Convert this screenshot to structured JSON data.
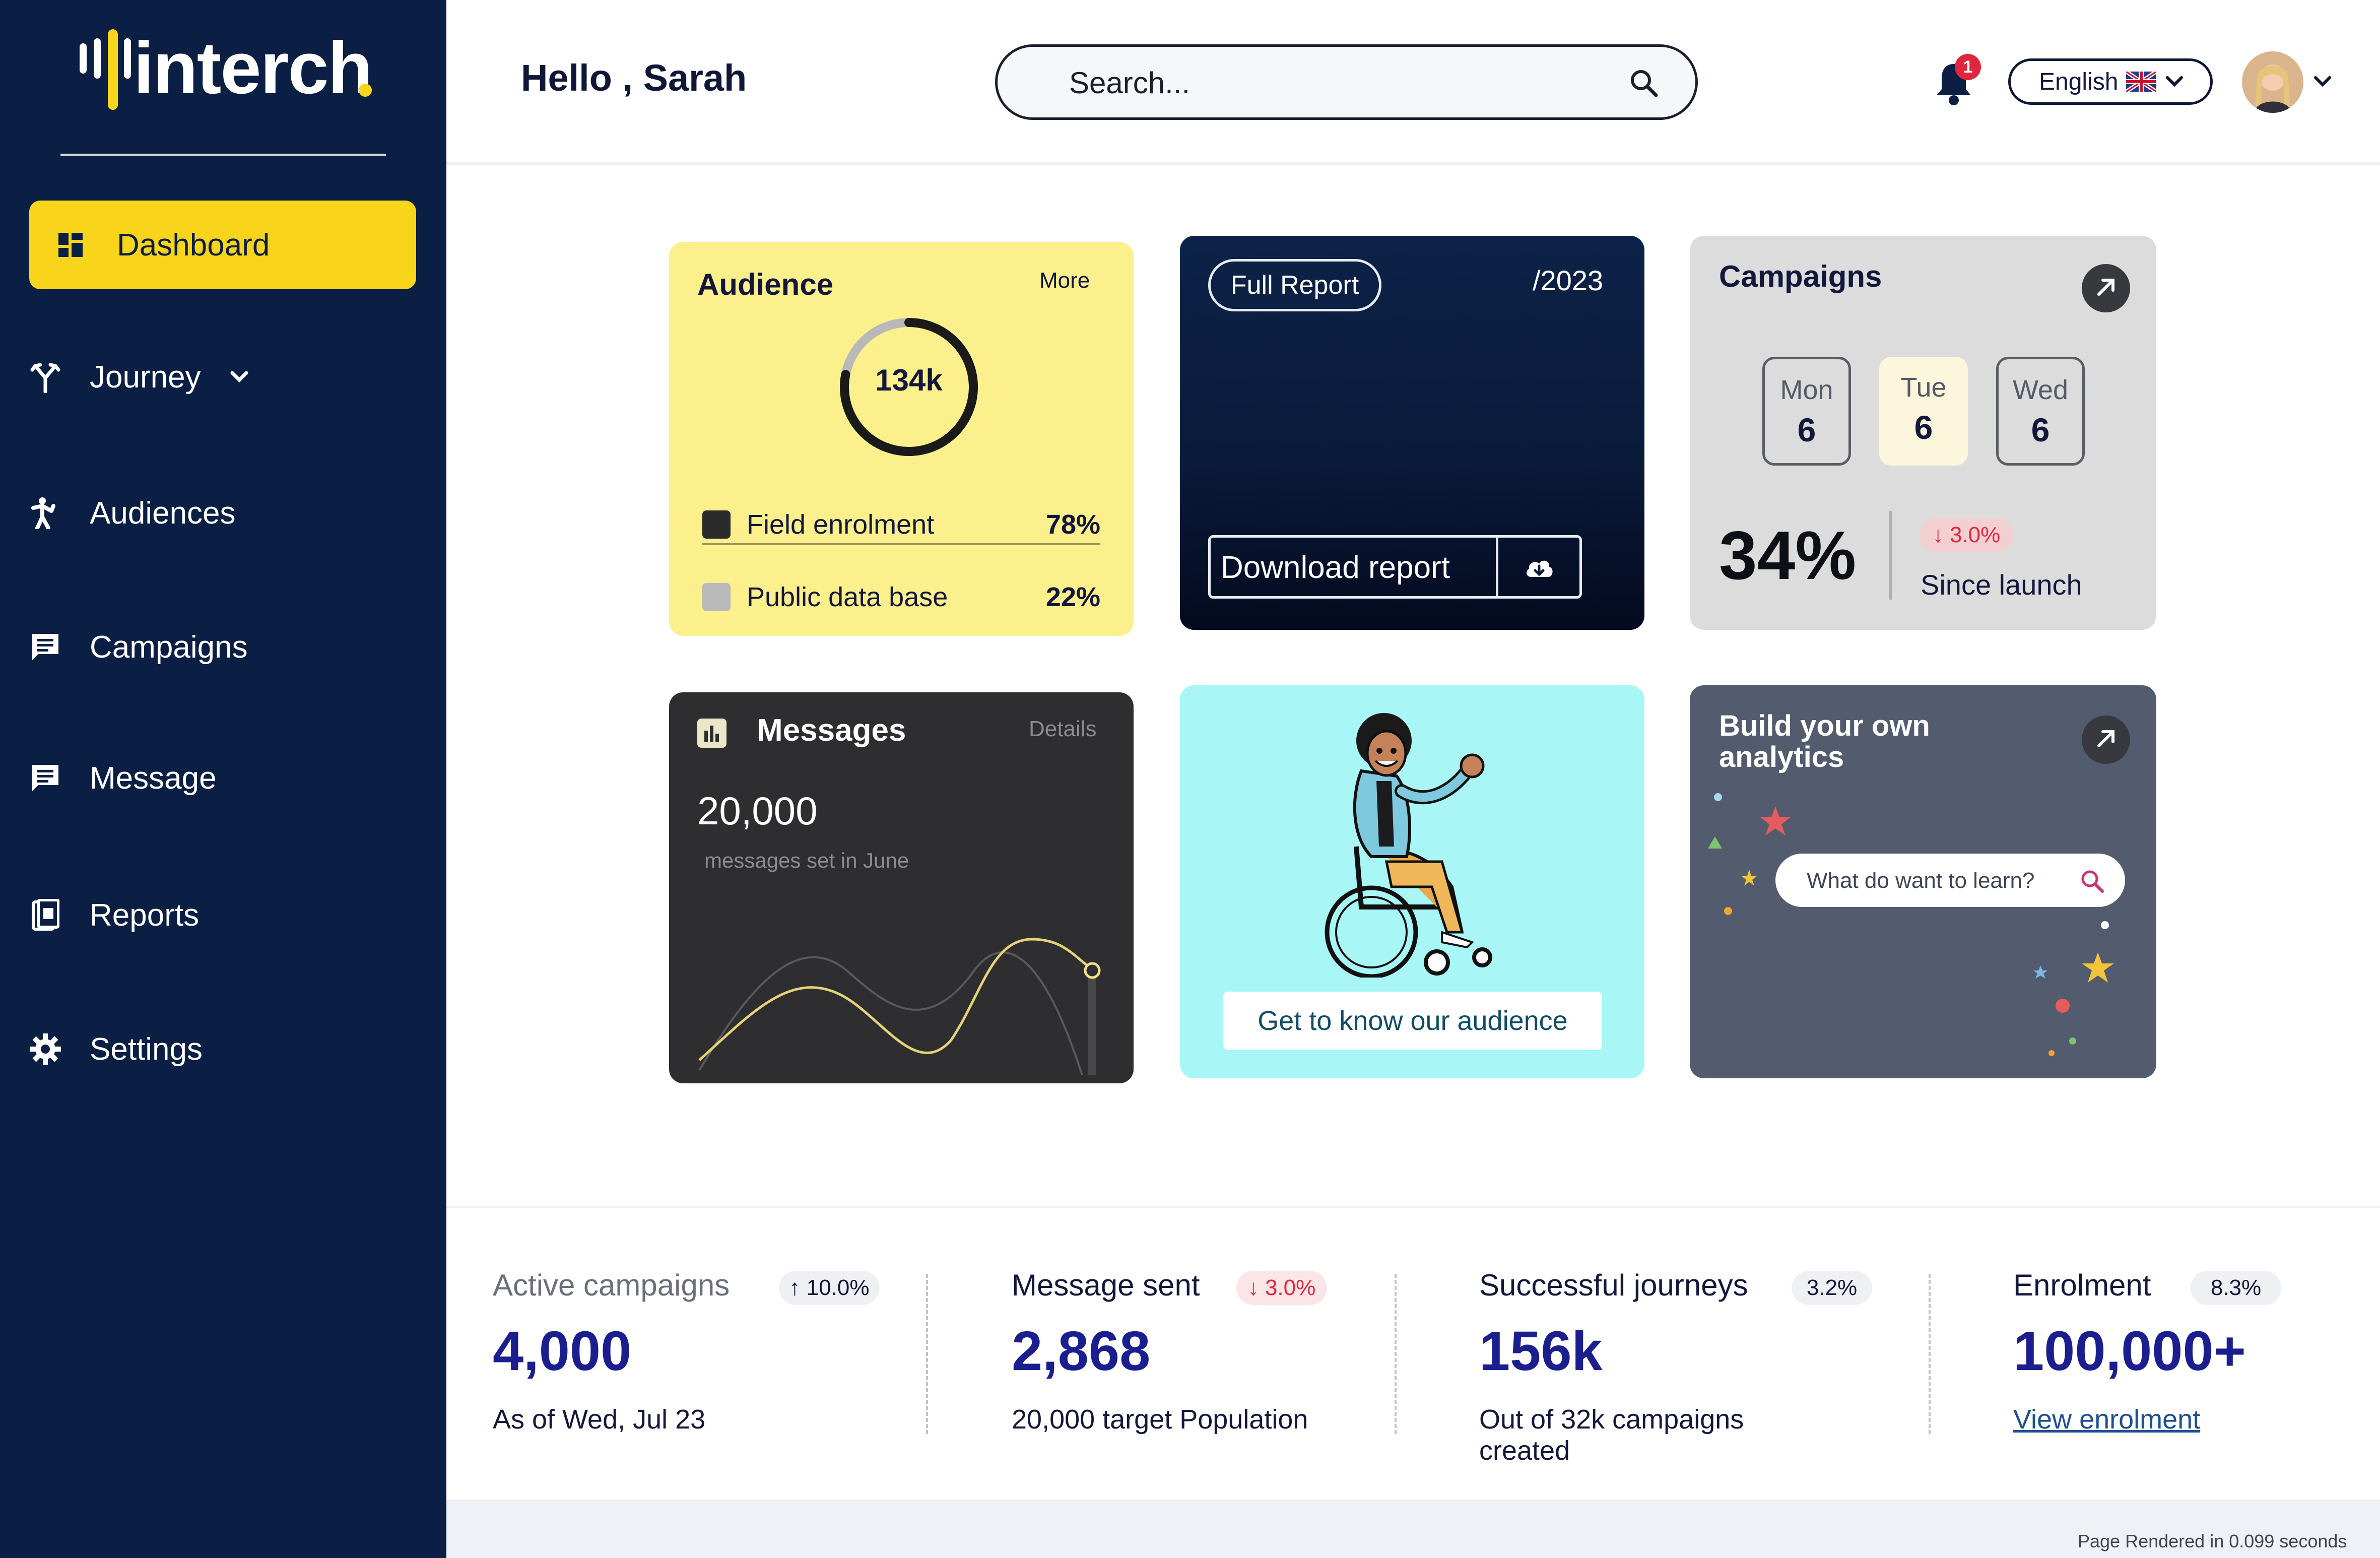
{
  "brand": {
    "name": "interch"
  },
  "sidebar": {
    "items": [
      {
        "label": "Dashboard",
        "icon": "dashboard-icon",
        "active": true
      },
      {
        "label": "Journey",
        "icon": "journey-icon",
        "expandable": true
      },
      {
        "label": "Audiences",
        "icon": "audiences-icon"
      },
      {
        "label": "Campaigns",
        "icon": "campaigns-icon"
      },
      {
        "label": "Message",
        "icon": "message-icon"
      },
      {
        "label": "Reports",
        "icon": "reports-icon"
      },
      {
        "label": "Settings",
        "icon": "settings-icon"
      }
    ]
  },
  "header": {
    "greeting": "Hello , Sarah",
    "search_placeholder": "Search...",
    "notifications_count": "1",
    "language": "English"
  },
  "cards": {
    "audience": {
      "title": "Audience",
      "more": "More",
      "total": "134k",
      "legend": [
        {
          "label": "Field enrolment",
          "value": "78%",
          "color": "#2b2b2b"
        },
        {
          "label": "Public data base",
          "value": "22%",
          "color": "#b9b9b9"
        }
      ]
    },
    "report": {
      "button": "Full Report",
      "year": "/2023",
      "download": "Download report"
    },
    "campaigns": {
      "title": "Campaigns",
      "days": [
        {
          "name": "Mon",
          "value": "6"
        },
        {
          "name": "Tue",
          "value": "6",
          "highlight": true
        },
        {
          "name": "Wed",
          "value": "6"
        }
      ],
      "percent": "34%",
      "change": "↓ 3.0%",
      "since": "Since launch"
    },
    "messages": {
      "title": "Messages",
      "details": "Details",
      "count": "20,000",
      "subtitle": "messages set in June"
    },
    "illustration": {
      "button": "Get to know our audience"
    },
    "analytics": {
      "title": "Build your own analytics",
      "search_placeholder": "What do want to learn?"
    }
  },
  "stats": [
    {
      "label": "Active campaigns",
      "chip": "↑ 10.0%",
      "chip_type": "up",
      "value": "4,000",
      "desc": "As of Wed, Jul 23"
    },
    {
      "label": "Message sent",
      "chip": "↓ 3.0%",
      "chip_type": "down",
      "value": "2,868",
      "desc": "20,000 target Population"
    },
    {
      "label": "Successful journeys",
      "chip": "3.2%",
      "chip_type": "neutral",
      "value": "156k",
      "desc": "Out of 32k campaigns created"
    },
    {
      "label": "Enrolment",
      "chip": "8.3%",
      "chip_type": "neutral",
      "value": "100,000+",
      "link": "View enrolment"
    }
  ],
  "footer": {
    "render_note": "Page Rendered in 0.099 seconds"
  },
  "colors": {
    "sidebar_bg": "#0b1f44",
    "accent_yellow": "#f8d51a",
    "stat_value_blue": "#1a1e8e",
    "alert_red": "#e0263c"
  }
}
